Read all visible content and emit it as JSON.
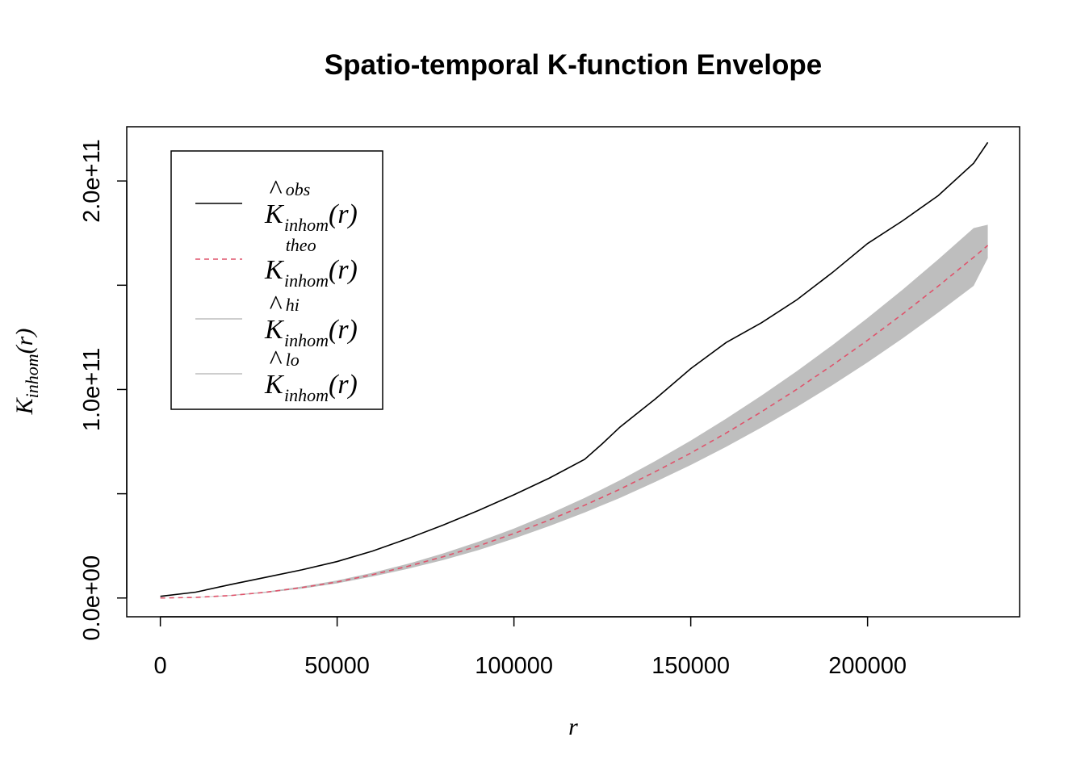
{
  "chart_data": {
    "type": "line",
    "title": "Spatio-temporal K-function Envelope",
    "xlabel": "r",
    "ylabel": {
      "base": "K",
      "subscript": "inhom",
      "arg": "(r)"
    },
    "xlim": [
      -9500,
      243000
    ],
    "ylim": [
      -9000000000,
      226000000000
    ],
    "x_ticks": [
      0,
      50000,
      100000,
      150000,
      200000
    ],
    "x_tick_labels": [
      "0",
      "50000",
      "100000",
      "150000",
      "200000"
    ],
    "y_ticks": [
      0,
      50000000000,
      100000000000,
      150000000000,
      200000000000
    ],
    "y_tick_labels": [
      "0.0e+00",
      "",
      "1.0e+11",
      "",
      "2.0e+11"
    ],
    "grid": false,
    "legend_position": "top-left",
    "legend": [
      {
        "key": "obs",
        "hat": true,
        "base": "K",
        "sup": "obs",
        "sub": "inhom",
        "arg": "(r)",
        "color": "#000000",
        "dash": "solid"
      },
      {
        "key": "theo",
        "hat": false,
        "base": "K",
        "sup": "theo",
        "sub": "inhom",
        "arg": "(r)",
        "color": "#DF536B",
        "dash": "dashed"
      },
      {
        "key": "hi",
        "hat": true,
        "base": "K",
        "sup": "hi",
        "sub": "inhom",
        "arg": "(r)",
        "color": "#BEBEBE",
        "dash": "solid"
      },
      {
        "key": "lo",
        "hat": true,
        "base": "K",
        "sup": "lo",
        "sub": "inhom",
        "arg": "(r)",
        "color": "#BEBEBE",
        "dash": "solid"
      }
    ],
    "x": [
      0,
      10000,
      20000,
      30000,
      40000,
      50000,
      60000,
      70000,
      80000,
      90000,
      100000,
      110000,
      120000,
      125000,
      130000,
      140000,
      150000,
      160000,
      170000,
      180000,
      190000,
      200000,
      210000,
      220000,
      230000,
      234000
    ],
    "series": [
      {
        "name": "obs",
        "values": [
          800000000.0,
          2800000000.0,
          6500000000.0,
          10000000000.0,
          13500000000.0,
          17500000000.0,
          22500000000.0,
          28500000000.0,
          35000000000.0,
          42000000000.0,
          49500000000.0,
          57500000000.0,
          66500000000.0,
          74000000000.0,
          82000000000.0,
          95500000000.0,
          110000000000.0,
          122500000000.0,
          132000000000.0,
          143000000000.0,
          156000000000.0,
          170000000000.0,
          181000000000.0,
          193000000000.0,
          208500000000.0,
          218500000000.0
        ]
      },
      {
        "name": "theo",
        "values": [
          0,
          300000000.0,
          1200000000.0,
          2800000000.0,
          5000000000.0,
          7700000000.0,
          11200000000.0,
          15200000000.0,
          19800000000.0,
          25000000000.0,
          30900000000.0,
          37400000000.0,
          44500000000.0,
          48300000000.0,
          52200000000.0,
          60600000000.0,
          69500000000.0,
          79100000000.0,
          89300000000.0,
          100100000000.0,
          111600000000.0,
          123600000000.0,
          136300000000.0,
          149600000000.0,
          163400000000.0,
          169100000000.0
        ]
      },
      {
        "name": "hi",
        "values": [
          0,
          400000000.0,
          1400000000.0,
          3100000000.0,
          5500000000.0,
          8400000000.0,
          12100000000.0,
          16400000000.0,
          21400000000.0,
          27000000000.0,
          33300000000.0,
          40300000000.0,
          48000000000.0,
          52200000000.0,
          56500000000.0,
          65700000000.0,
          75500000000.0,
          86000000000.0,
          97100000000.0,
          108800000000.0,
          121200000000.0,
          134300000000.0,
          148000000000.0,
          162400000000.0,
          177400000000.0,
          179000000000.0
        ]
      },
      {
        "name": "lo",
        "values": [
          0,
          200000000.0,
          1000000000.0,
          2500000000.0,
          4500000000.0,
          7000000000.0,
          10300000000.0,
          14000000000.0,
          18200000000.0,
          23000000000.0,
          28500000000.0,
          34500000000.0,
          41000000000.0,
          44500000000.0,
          48000000000.0,
          55700000000.0,
          63800000000.0,
          72500000000.0,
          81800000000.0,
          91600000000.0,
          102000000000.0,
          113000000000.0,
          124600000000.0,
          136900000000.0,
          149700000000.0,
          163000000000.0
        ]
      }
    ]
  }
}
